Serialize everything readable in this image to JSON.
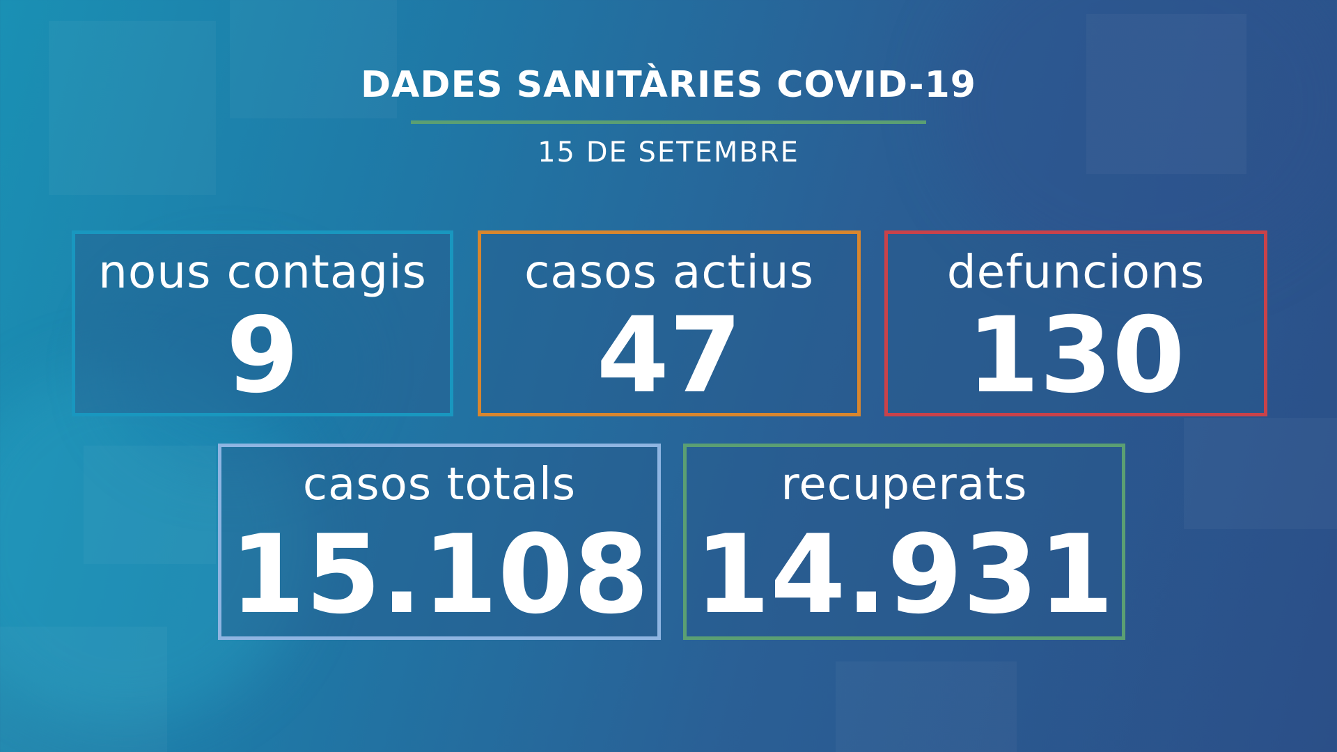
{
  "header": {
    "title": "DADES SANITÀRIES COVID-19",
    "date": "15 DE SETEMBRE"
  },
  "stats": {
    "nous_contagis": {
      "label": "nous contagis",
      "value": "9",
      "color": "#1997bf"
    },
    "casos_actius": {
      "label": "casos actius",
      "value": "47",
      "color": "#d8862e"
    },
    "defuncions": {
      "label": "defuncions",
      "value": "130",
      "color": "#c9424a"
    },
    "casos_totals": {
      "label": "casos totals",
      "value": "15.108",
      "color": "#8fb5e2"
    },
    "recuperats": {
      "label": "recuperats",
      "value": "14.931",
      "color": "#5b9f73"
    }
  },
  "colors": {
    "background_start": "#1a90b4",
    "background_end": "#2b4f88",
    "accent_rule": "#5b9f73",
    "text": "#ffffff"
  }
}
